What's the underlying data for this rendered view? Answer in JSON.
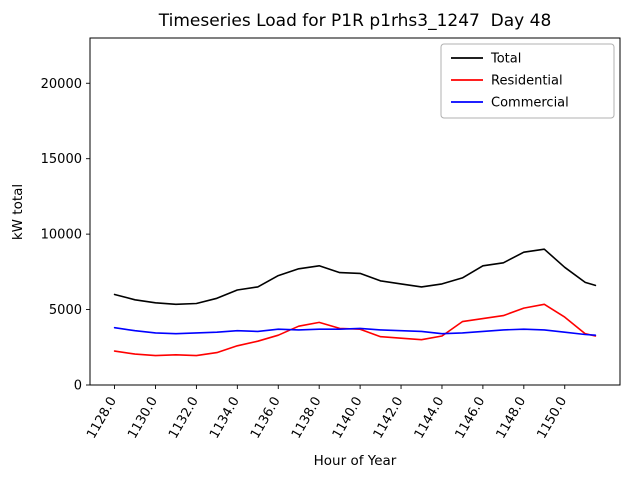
{
  "chart_data": {
    "type": "line",
    "title": "Timeseries Load for P1R p1rhs3_1247  Day 48",
    "xlabel": "Hour of Year",
    "ylabel": "kW total",
    "xlim": [
      1126.8,
      1152.7
    ],
    "ylim": [
      0,
      23000
    ],
    "grid": false,
    "legend_position": "upper right",
    "xticks": {
      "values": [
        1128,
        1130,
        1132,
        1134,
        1136,
        1138,
        1140,
        1142,
        1144,
        1146,
        1148,
        1150
      ],
      "labels": [
        "1128.0",
        "1130.0",
        "1132.0",
        "1134.0",
        "1136.0",
        "1138.0",
        "1140.0",
        "1142.0",
        "1144.0",
        "1146.0",
        "1148.0",
        "1150.0"
      ]
    },
    "yticks": {
      "values": [
        0,
        5000,
        10000,
        15000,
        20000
      ],
      "labels": [
        "0",
        "5000",
        "10000",
        "15000",
        "20000"
      ]
    },
    "x": [
      1128,
      1129,
      1130,
      1131,
      1132,
      1133,
      1134,
      1135,
      1136,
      1137,
      1138,
      1139,
      1140,
      1141,
      1142,
      1143,
      1144,
      1145,
      1146,
      1147,
      1148,
      1149,
      1150,
      1151,
      1151.5
    ],
    "series": [
      {
        "name": "Total",
        "color": "#000000",
        "values": [
          6000,
          5650,
          5450,
          5350,
          5400,
          5750,
          6300,
          6500,
          7250,
          7700,
          7900,
          7450,
          7400,
          6900,
          6700,
          6500,
          6700,
          7100,
          7900,
          8100,
          8800,
          9000,
          7800,
          6800,
          6600
        ]
      },
      {
        "name": "Residential",
        "color": "#ff0000",
        "values": [
          2250,
          2050,
          1950,
          2000,
          1950,
          2150,
          2600,
          2900,
          3300,
          3900,
          4150,
          3750,
          3700,
          3200,
          3100,
          3000,
          3250,
          4200,
          4400,
          4600,
          5100,
          5350,
          4500,
          3400,
          3250
        ]
      },
      {
        "name": "Commercial",
        "color": "#0000ff",
        "values": [
          3800,
          3600,
          3450,
          3400,
          3450,
          3500,
          3600,
          3550,
          3700,
          3650,
          3700,
          3700,
          3750,
          3650,
          3600,
          3550,
          3400,
          3450,
          3550,
          3650,
          3700,
          3650,
          3500,
          3350,
          3300
        ]
      }
    ]
  }
}
